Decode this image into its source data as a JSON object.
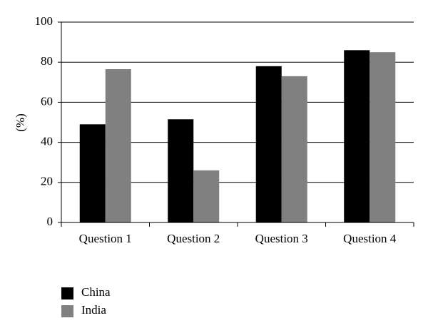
{
  "chart_data": {
    "type": "bar",
    "y_label": "(%)",
    "categories": [
      "Question 1",
      "Question 2",
      "Question 3",
      "Question 4"
    ],
    "series": [
      {
        "name": "China",
        "color": "#000000",
        "values": [
          49,
          51.5,
          78,
          86
        ]
      },
      {
        "name": "India",
        "color": "#808080",
        "values": [
          76.5,
          26,
          73,
          85
        ]
      }
    ],
    "ylim": [
      0,
      100
    ],
    "yticks": [
      0,
      20,
      40,
      60,
      80,
      100
    ],
    "grid": true
  }
}
